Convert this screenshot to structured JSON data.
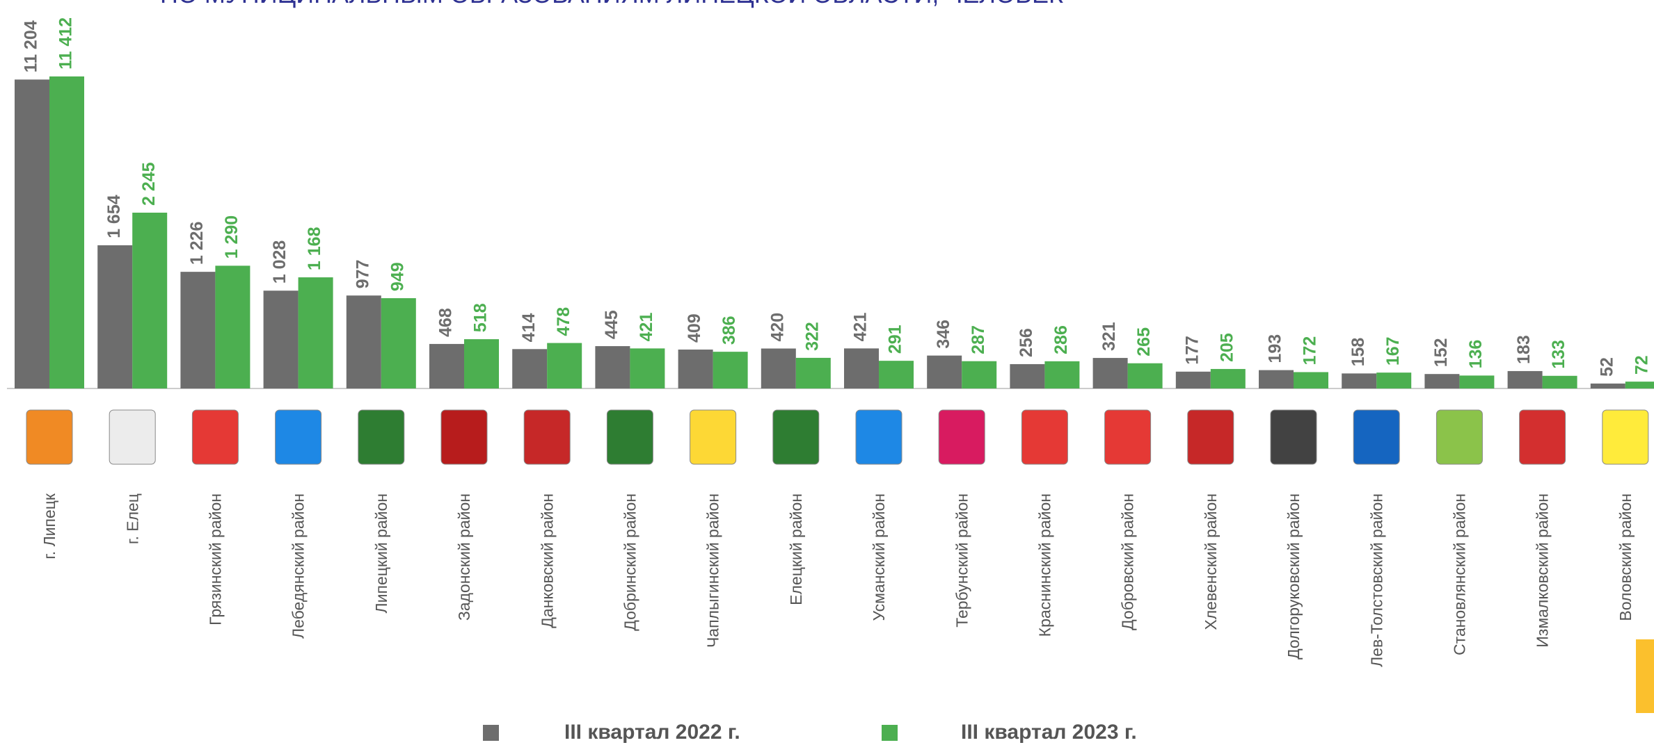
{
  "chart_data": {
    "type": "bar",
    "title": "ПО МУНИЦИПАЛЬНЫМ ОБРАЗОВАНИЯМ ЛИПЕЦКОЙ ОБЛАСТИ, ЧЕЛОВЕК",
    "categories": [
      "г. Липецк",
      "г. Елец",
      "Грязинский район",
      "Лебедянский район",
      "Липецкий район",
      "Задонский район",
      "Данковский район",
      "Добринский район",
      "Чаплыгинский район",
      "Елецкий район",
      "Усманский район",
      "Тербунский район",
      "Краснинский район",
      "Добровский район",
      "Хлевенский район",
      "Долгоруковский район",
      "Лев-Толстовский район",
      "Становлянский район",
      "Измалковский район",
      "Воловский район"
    ],
    "series": [
      {
        "name": "III квартал 2022 г.",
        "color": "#6d6d6d",
        "values": [
          11204,
          1654,
          1226,
          1028,
          977,
          468,
          414,
          445,
          409,
          420,
          421,
          346,
          256,
          321,
          177,
          193,
          158,
          152,
          183,
          52
        ],
        "value_labels": [
          "11 204",
          "1 654",
          "1 226",
          "1 028",
          "977",
          "468",
          "414",
          "445",
          "409",
          "420",
          "421",
          "346",
          "256",
          "321",
          "177",
          "193",
          "158",
          "152",
          "183",
          "52"
        ]
      },
      {
        "name": "III квартал 2023 г.",
        "color": "#4caf50",
        "values": [
          11412,
          2245,
          1290,
          1168,
          949,
          518,
          478,
          421,
          386,
          322,
          291,
          287,
          286,
          265,
          205,
          172,
          167,
          136,
          133,
          72
        ],
        "value_labels": [
          "11 412",
          "2 245",
          "1 290",
          "1 168",
          "949",
          "518",
          "478",
          "421",
          "386",
          "322",
          "291",
          "287",
          "286",
          "265",
          "205",
          "172",
          "167",
          "136",
          "133",
          "72"
        ]
      }
    ]
  }
}
